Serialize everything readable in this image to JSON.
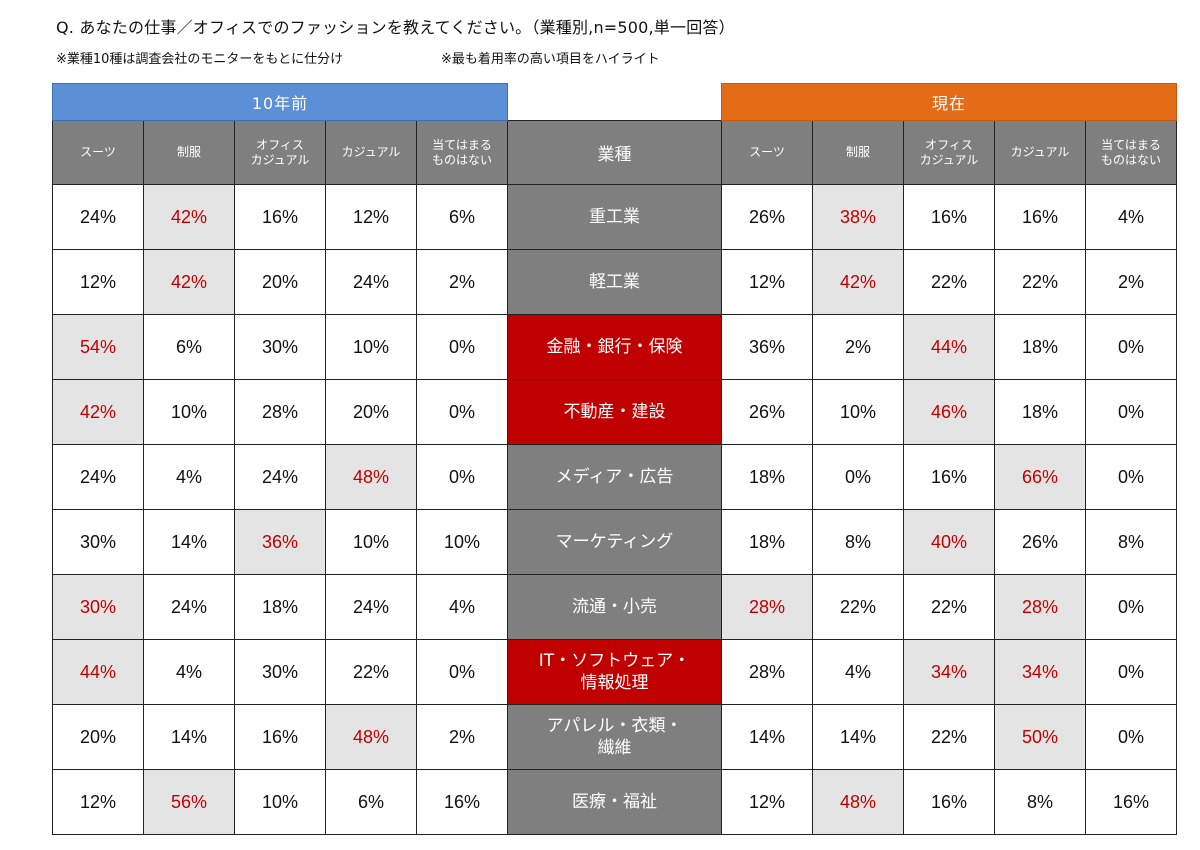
{
  "title": "Q. あなたの仕事／オフィスでのファッションを教えてください。（業種別,n=500,単一回答）",
  "notes": [
    "※業種10種は調査会社のモニターをもとに仕分け",
    "※最も着用率の高い項目をハイライト"
  ],
  "colors": {
    "past_band": "#5b8fd6",
    "now_band": "#e46c16",
    "header_gray": "#7f7f7f",
    "highlight_text": "#c00000",
    "highlight_bg": "#e4e4e4",
    "industry_red": "#c00000"
  },
  "chart_data": {
    "type": "table",
    "groups": [
      "10年前",
      "現在"
    ],
    "industry_header": "業種",
    "columns": [
      "スーツ",
      "制服",
      "オフィス\nカジュアル",
      "カジュアル",
      "当てはまる\nものはない"
    ],
    "rows": [
      {
        "industry": "重工業",
        "red": false,
        "past": [
          "24%",
          "42%",
          "16%",
          "12%",
          "6%"
        ],
        "past_hl": [
          1
        ],
        "now": [
          "26%",
          "38%",
          "16%",
          "16%",
          "4%"
        ],
        "now_hl": [
          1
        ]
      },
      {
        "industry": "軽工業",
        "red": false,
        "past": [
          "12%",
          "42%",
          "20%",
          "24%",
          "2%"
        ],
        "past_hl": [
          1
        ],
        "now": [
          "12%",
          "42%",
          "22%",
          "22%",
          "2%"
        ],
        "now_hl": [
          1
        ]
      },
      {
        "industry": "金融・銀行・保険",
        "red": true,
        "past": [
          "54%",
          "6%",
          "30%",
          "10%",
          "0%"
        ],
        "past_hl": [
          0
        ],
        "now": [
          "36%",
          "2%",
          "44%",
          "18%",
          "0%"
        ],
        "now_hl": [
          2
        ]
      },
      {
        "industry": "不動産・建設",
        "red": true,
        "past": [
          "42%",
          "10%",
          "28%",
          "20%",
          "0%"
        ],
        "past_hl": [
          0
        ],
        "now": [
          "26%",
          "10%",
          "46%",
          "18%",
          "0%"
        ],
        "now_hl": [
          2
        ]
      },
      {
        "industry": "メディア・広告",
        "red": false,
        "past": [
          "24%",
          "4%",
          "24%",
          "48%",
          "0%"
        ],
        "past_hl": [
          3
        ],
        "now": [
          "18%",
          "0%",
          "16%",
          "66%",
          "0%"
        ],
        "now_hl": [
          3
        ]
      },
      {
        "industry": "マーケティング",
        "red": false,
        "past": [
          "30%",
          "14%",
          "36%",
          "10%",
          "10%"
        ],
        "past_hl": [
          2
        ],
        "now": [
          "18%",
          "8%",
          "40%",
          "26%",
          "8%"
        ],
        "now_hl": [
          2
        ]
      },
      {
        "industry": "流通・小売",
        "red": false,
        "past": [
          "30%",
          "24%",
          "18%",
          "24%",
          "4%"
        ],
        "past_hl": [
          0
        ],
        "now": [
          "28%",
          "22%",
          "22%",
          "28%",
          "0%"
        ],
        "now_hl": [
          0,
          3
        ]
      },
      {
        "industry": "IT・ソフトウェア・\n情報処理",
        "red": true,
        "past": [
          "44%",
          "4%",
          "30%",
          "22%",
          "0%"
        ],
        "past_hl": [
          0
        ],
        "now": [
          "28%",
          "4%",
          "34%",
          "34%",
          "0%"
        ],
        "now_hl": [
          2,
          3
        ]
      },
      {
        "industry": "アパレル・衣類・\n繊維",
        "red": false,
        "past": [
          "20%",
          "14%",
          "16%",
          "48%",
          "2%"
        ],
        "past_hl": [
          3
        ],
        "now": [
          "14%",
          "14%",
          "22%",
          "50%",
          "0%"
        ],
        "now_hl": [
          3
        ]
      },
      {
        "industry": "医療・福祉",
        "red": false,
        "past": [
          "12%",
          "56%",
          "10%",
          "6%",
          "16%"
        ],
        "past_hl": [
          1
        ],
        "now": [
          "12%",
          "48%",
          "16%",
          "8%",
          "16%"
        ],
        "now_hl": [
          1
        ]
      }
    ]
  }
}
